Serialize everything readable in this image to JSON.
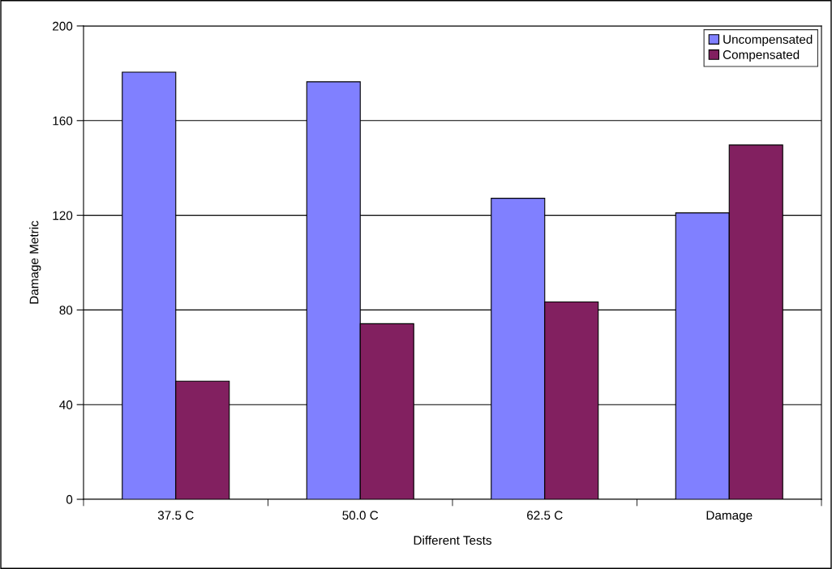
{
  "chart_data": {
    "type": "bar",
    "xlabel": "Different Tests",
    "ylabel": "Damage Metric",
    "categories": [
      "37.5 C",
      "50.0 C",
      "62.5 C",
      "Damage"
    ],
    "series": [
      {
        "name": "Uncompensated",
        "color": "#8080ff",
        "values": [
          180.5,
          176.4,
          127.2,
          121
        ]
      },
      {
        "name": "Compensated",
        "color": "#822060",
        "values": [
          49.9,
          74.2,
          83.4,
          149.7
        ]
      }
    ],
    "ylim": [
      0,
      200
    ],
    "yticks": [
      0,
      40,
      80,
      120,
      160,
      200
    ],
    "grid": "y",
    "legend": "top right"
  }
}
